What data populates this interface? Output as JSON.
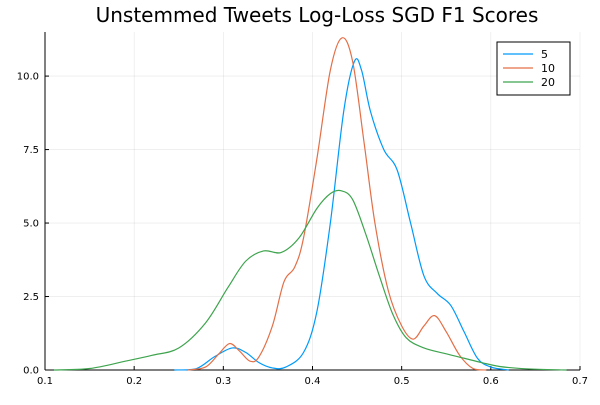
{
  "chart_data": {
    "type": "line",
    "title": "Unstemmed Tweets Log-Loss SGD F1 Scores",
    "xlabel": "",
    "ylabel": "",
    "xlim": [
      0.1,
      0.7
    ],
    "ylim": [
      0.0,
      11.5
    ],
    "x_ticks": [
      0.1,
      0.2,
      0.3,
      0.4,
      0.5,
      0.6,
      0.7
    ],
    "x_tick_labels": [
      "0.1",
      "0.2",
      "0.3",
      "0.4",
      "0.5",
      "0.6",
      "0.7"
    ],
    "y_ticks": [
      0.0,
      2.5,
      5.0,
      7.5,
      10.0
    ],
    "y_tick_labels": [
      "0.0",
      "2.5",
      "5.0",
      "7.5",
      "10.0"
    ],
    "grid": true,
    "legend_position": "top-right",
    "series": [
      {
        "name": "5",
        "color": "#009AFA",
        "points": [
          [
            0.245,
            0.0
          ],
          [
            0.27,
            0.05
          ],
          [
            0.29,
            0.45
          ],
          [
            0.31,
            0.75
          ],
          [
            0.325,
            0.6
          ],
          [
            0.34,
            0.25
          ],
          [
            0.355,
            0.07
          ],
          [
            0.37,
            0.1
          ],
          [
            0.39,
            0.6
          ],
          [
            0.405,
            2.0
          ],
          [
            0.42,
            5.0
          ],
          [
            0.435,
            8.8
          ],
          [
            0.447,
            10.5
          ],
          [
            0.455,
            10.2
          ],
          [
            0.465,
            8.8
          ],
          [
            0.48,
            7.5
          ],
          [
            0.495,
            6.8
          ],
          [
            0.51,
            5.0
          ],
          [
            0.525,
            3.2
          ],
          [
            0.54,
            2.6
          ],
          [
            0.555,
            2.2
          ],
          [
            0.57,
            1.3
          ],
          [
            0.585,
            0.4
          ],
          [
            0.6,
            0.1
          ],
          [
            0.62,
            0.0
          ]
        ]
      },
      {
        "name": "10",
        "color": "#E36F47",
        "points": [
          [
            0.26,
            0.0
          ],
          [
            0.28,
            0.1
          ],
          [
            0.295,
            0.55
          ],
          [
            0.307,
            0.9
          ],
          [
            0.318,
            0.65
          ],
          [
            0.33,
            0.3
          ],
          [
            0.34,
            0.45
          ],
          [
            0.355,
            1.5
          ],
          [
            0.368,
            3.0
          ],
          [
            0.38,
            3.5
          ],
          [
            0.39,
            4.5
          ],
          [
            0.405,
            7.2
          ],
          [
            0.42,
            10.2
          ],
          [
            0.433,
            11.3
          ],
          [
            0.445,
            10.5
          ],
          [
            0.458,
            7.7
          ],
          [
            0.47,
            5.0
          ],
          [
            0.485,
            2.7
          ],
          [
            0.5,
            1.5
          ],
          [
            0.513,
            1.05
          ],
          [
            0.525,
            1.5
          ],
          [
            0.537,
            1.85
          ],
          [
            0.55,
            1.3
          ],
          [
            0.565,
            0.5
          ],
          [
            0.58,
            0.05
          ],
          [
            0.595,
            0.0
          ]
        ]
      },
      {
        "name": "20",
        "color": "#3EA44E",
        "points": [
          [
            0.11,
            0.0
          ],
          [
            0.15,
            0.05
          ],
          [
            0.19,
            0.3
          ],
          [
            0.22,
            0.5
          ],
          [
            0.25,
            0.75
          ],
          [
            0.28,
            1.6
          ],
          [
            0.305,
            2.8
          ],
          [
            0.325,
            3.7
          ],
          [
            0.345,
            4.05
          ],
          [
            0.365,
            4.0
          ],
          [
            0.385,
            4.5
          ],
          [
            0.405,
            5.5
          ],
          [
            0.42,
            6.0
          ],
          [
            0.432,
            6.1
          ],
          [
            0.445,
            5.8
          ],
          [
            0.46,
            4.6
          ],
          [
            0.475,
            3.2
          ],
          [
            0.49,
            1.9
          ],
          [
            0.505,
            1.1
          ],
          [
            0.525,
            0.75
          ],
          [
            0.55,
            0.55
          ],
          [
            0.57,
            0.4
          ],
          [
            0.59,
            0.25
          ],
          [
            0.61,
            0.12
          ],
          [
            0.64,
            0.04
          ],
          [
            0.685,
            0.0
          ]
        ]
      }
    ]
  }
}
